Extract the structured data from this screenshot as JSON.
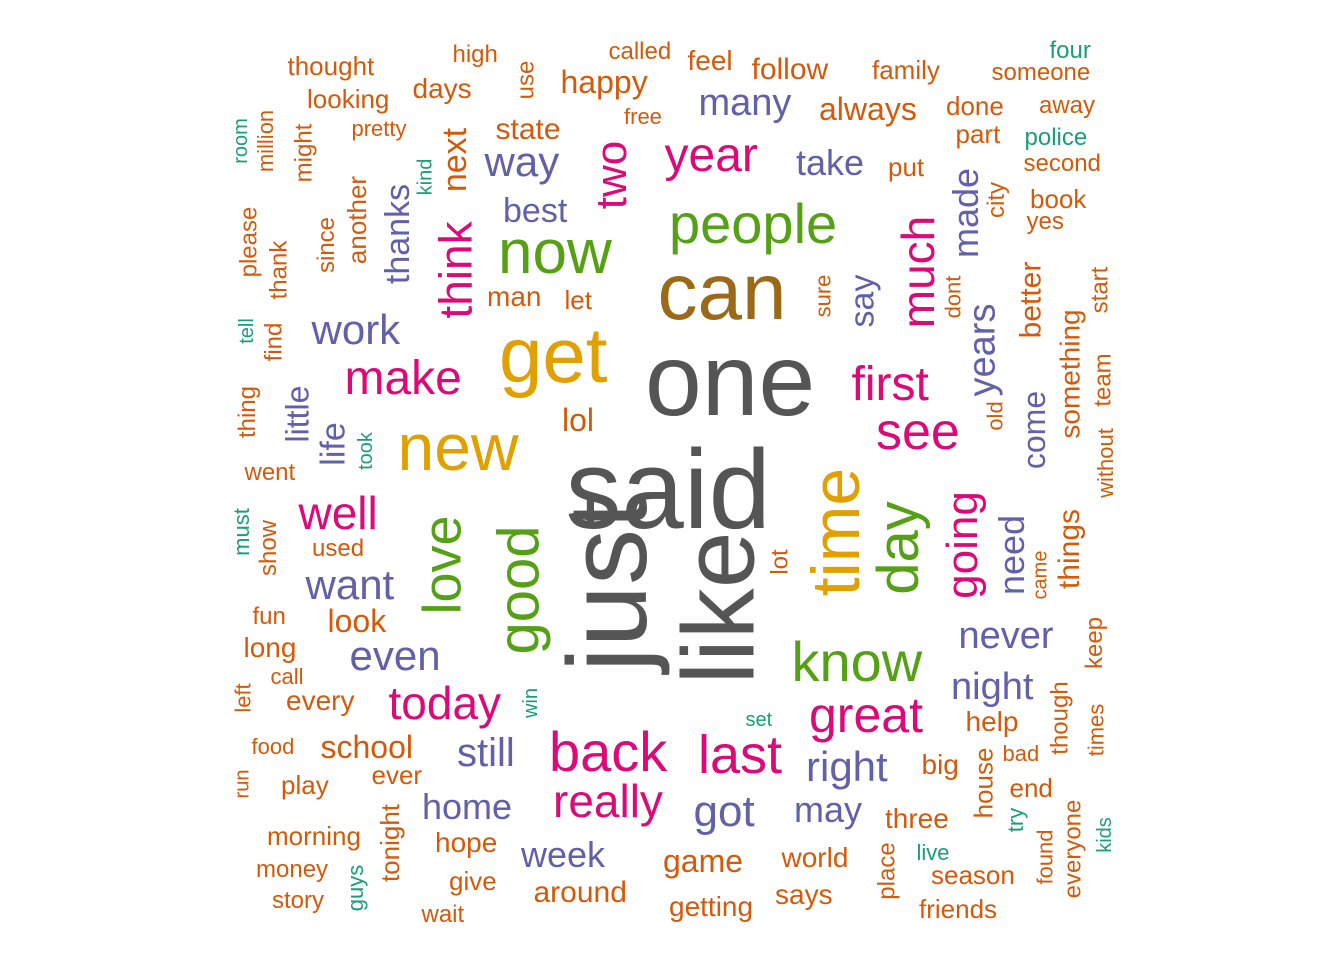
{
  "colors": {
    "gray": "#555555",
    "brown": "#9A6A18",
    "gold": "#E0A000",
    "green": "#55A015",
    "magenta": "#DC0A78",
    "purple": "#6260A8",
    "orange": "#D45A0A",
    "teal": "#1B9E77"
  },
  "words": [
    {
      "text": "said",
      "color": "gray"
    },
    {
      "text": "just",
      "color": "gray"
    },
    {
      "text": "like",
      "color": "gray"
    },
    {
      "text": "one",
      "color": "gray"
    },
    {
      "text": "can",
      "color": "brown"
    },
    {
      "text": "get",
      "color": "gold"
    },
    {
      "text": "new",
      "color": "gold"
    },
    {
      "text": "time",
      "color": "gold"
    },
    {
      "text": "now",
      "color": "green"
    },
    {
      "text": "people",
      "color": "green"
    },
    {
      "text": "good",
      "color": "green"
    },
    {
      "text": "love",
      "color": "green"
    },
    {
      "text": "know",
      "color": "green"
    },
    {
      "text": "day",
      "color": "green"
    },
    {
      "text": "back",
      "color": "magenta"
    },
    {
      "text": "last",
      "color": "magenta"
    },
    {
      "text": "great",
      "color": "magenta"
    },
    {
      "text": "see",
      "color": "magenta"
    },
    {
      "text": "first",
      "color": "magenta"
    },
    {
      "text": "much",
      "color": "magenta"
    },
    {
      "text": "make",
      "color": "magenta"
    },
    {
      "text": "think",
      "color": "magenta"
    },
    {
      "text": "year",
      "color": "magenta"
    },
    {
      "text": "two",
      "color": "magenta"
    },
    {
      "text": "today",
      "color": "magenta"
    },
    {
      "text": "really",
      "color": "magenta"
    },
    {
      "text": "well",
      "color": "magenta"
    },
    {
      "text": "going",
      "color": "magenta"
    },
    {
      "text": "next",
      "color": "orange"
    },
    {
      "text": "way",
      "color": "purple"
    },
    {
      "text": "work",
      "color": "purple"
    },
    {
      "text": "want",
      "color": "purple"
    },
    {
      "text": "even",
      "color": "purple"
    },
    {
      "text": "still",
      "color": "purple"
    },
    {
      "text": "home",
      "color": "purple"
    },
    {
      "text": "got",
      "color": "purple"
    },
    {
      "text": "week",
      "color": "purple"
    },
    {
      "text": "right",
      "color": "purple"
    },
    {
      "text": "may",
      "color": "purple"
    },
    {
      "text": "night",
      "color": "purple"
    },
    {
      "text": "never",
      "color": "purple"
    },
    {
      "text": "need",
      "color": "purple"
    },
    {
      "text": "years",
      "color": "purple"
    },
    {
      "text": "made",
      "color": "purple"
    },
    {
      "text": "come",
      "color": "purple"
    },
    {
      "text": "many",
      "color": "purple"
    },
    {
      "text": "take",
      "color": "purple"
    },
    {
      "text": "say",
      "color": "purple"
    },
    {
      "text": "best",
      "color": "purple"
    },
    {
      "text": "thanks",
      "color": "purple"
    },
    {
      "text": "little",
      "color": "purple"
    },
    {
      "text": "life",
      "color": "purple"
    },
    {
      "text": "state",
      "color": "orange"
    },
    {
      "text": "happy",
      "color": "orange"
    },
    {
      "text": "always",
      "color": "orange"
    },
    {
      "text": "follow",
      "color": "orange"
    },
    {
      "text": "family",
      "color": "orange"
    },
    {
      "text": "feel",
      "color": "orange"
    },
    {
      "text": "called",
      "color": "orange"
    },
    {
      "text": "high",
      "color": "orange"
    },
    {
      "text": "thought",
      "color": "orange"
    },
    {
      "text": "days",
      "color": "orange"
    },
    {
      "text": "use",
      "color": "orange"
    },
    {
      "text": "looking",
      "color": "orange"
    },
    {
      "text": "pretty",
      "color": "orange"
    },
    {
      "text": "free",
      "color": "orange"
    },
    {
      "text": "someone",
      "color": "orange"
    },
    {
      "text": "done",
      "color": "orange"
    },
    {
      "text": "away",
      "color": "orange"
    },
    {
      "text": "part",
      "color": "orange"
    },
    {
      "text": "second",
      "color": "orange"
    },
    {
      "text": "put",
      "color": "orange"
    },
    {
      "text": "book",
      "color": "orange"
    },
    {
      "text": "yes",
      "color": "orange"
    },
    {
      "text": "city",
      "color": "orange"
    },
    {
      "text": "dont",
      "color": "orange"
    },
    {
      "text": "better",
      "color": "orange"
    },
    {
      "text": "start",
      "color": "orange"
    },
    {
      "text": "something",
      "color": "orange"
    },
    {
      "text": "team",
      "color": "orange"
    },
    {
      "text": "without",
      "color": "orange"
    },
    {
      "text": "things",
      "color": "orange"
    },
    {
      "text": "came",
      "color": "orange"
    },
    {
      "text": "keep",
      "color": "orange"
    },
    {
      "text": "though",
      "color": "orange"
    },
    {
      "text": "times",
      "color": "orange"
    },
    {
      "text": "bad",
      "color": "orange"
    },
    {
      "text": "end",
      "color": "orange"
    },
    {
      "text": "everyone",
      "color": "orange"
    },
    {
      "text": "found",
      "color": "orange"
    },
    {
      "text": "house",
      "color": "orange"
    },
    {
      "text": "help",
      "color": "orange"
    },
    {
      "text": "big",
      "color": "orange"
    },
    {
      "text": "three",
      "color": "orange"
    },
    {
      "text": "place",
      "color": "orange"
    },
    {
      "text": "season",
      "color": "orange"
    },
    {
      "text": "friends",
      "color": "orange"
    },
    {
      "text": "world",
      "color": "orange"
    },
    {
      "text": "says",
      "color": "orange"
    },
    {
      "text": "game",
      "color": "orange"
    },
    {
      "text": "getting",
      "color": "orange"
    },
    {
      "text": "around",
      "color": "orange"
    },
    {
      "text": "hope",
      "color": "orange"
    },
    {
      "text": "give",
      "color": "orange"
    },
    {
      "text": "wait",
      "color": "orange"
    },
    {
      "text": "tonight",
      "color": "orange"
    },
    {
      "text": "morning",
      "color": "orange"
    },
    {
      "text": "money",
      "color": "orange"
    },
    {
      "text": "story",
      "color": "orange"
    },
    {
      "text": "play",
      "color": "orange"
    },
    {
      "text": "ever",
      "color": "orange"
    },
    {
      "text": "school",
      "color": "orange"
    },
    {
      "text": "food",
      "color": "orange"
    },
    {
      "text": "run",
      "color": "orange"
    },
    {
      "text": "left",
      "color": "orange"
    },
    {
      "text": "call",
      "color": "orange"
    },
    {
      "text": "every",
      "color": "orange"
    },
    {
      "text": "long",
      "color": "orange"
    },
    {
      "text": "fun",
      "color": "orange"
    },
    {
      "text": "look",
      "color": "orange"
    },
    {
      "text": "show",
      "color": "orange"
    },
    {
      "text": "used",
      "color": "orange"
    },
    {
      "text": "went",
      "color": "orange"
    },
    {
      "text": "thing",
      "color": "orange"
    },
    {
      "text": "find",
      "color": "orange"
    },
    {
      "text": "thank",
      "color": "orange"
    },
    {
      "text": "please",
      "color": "orange"
    },
    {
      "text": "since",
      "color": "orange"
    },
    {
      "text": "another",
      "color": "orange"
    },
    {
      "text": "might",
      "color": "orange"
    },
    {
      "text": "million",
      "color": "orange"
    },
    {
      "text": "man",
      "color": "orange"
    },
    {
      "text": "let",
      "color": "orange"
    },
    {
      "text": "lol",
      "color": "orange"
    },
    {
      "text": "sure",
      "color": "orange"
    },
    {
      "text": "old",
      "color": "orange"
    },
    {
      "text": "lot",
      "color": "orange"
    },
    {
      "text": "four",
      "color": "teal"
    },
    {
      "text": "police",
      "color": "teal"
    },
    {
      "text": "room",
      "color": "teal"
    },
    {
      "text": "kind",
      "color": "teal"
    },
    {
      "text": "tell",
      "color": "teal"
    },
    {
      "text": "took",
      "color": "teal"
    },
    {
      "text": "must",
      "color": "teal"
    },
    {
      "text": "win",
      "color": "teal"
    },
    {
      "text": "set",
      "color": "teal"
    },
    {
      "text": "guys",
      "color": "teal"
    },
    {
      "text": "live",
      "color": "teal"
    },
    {
      "text": "try",
      "color": "teal"
    },
    {
      "text": "kids",
      "color": "teal"
    }
  ]
}
